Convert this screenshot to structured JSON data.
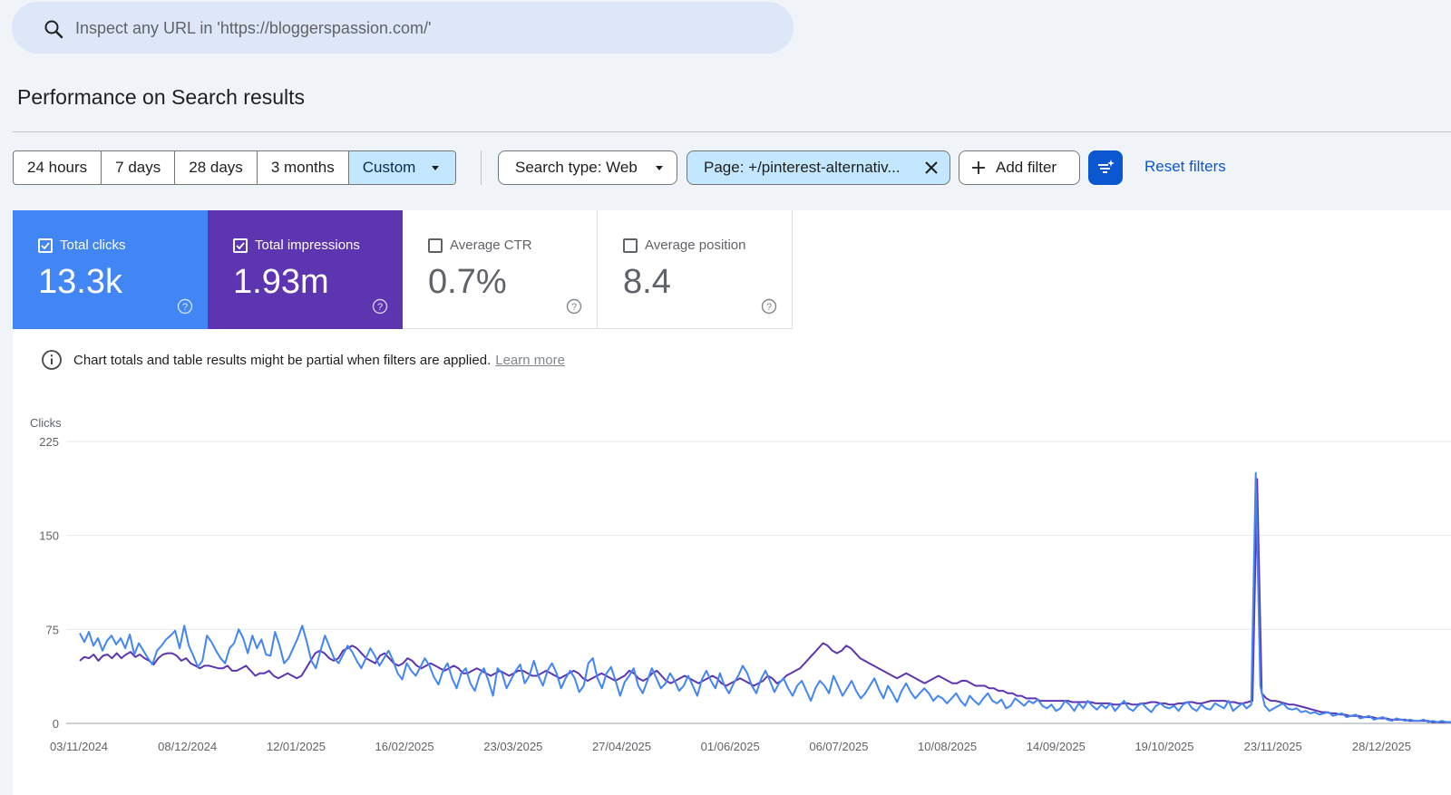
{
  "search": {
    "placeholder": "Inspect any URL in 'https://bloggerspassion.com/'"
  },
  "page_title": "Performance on Search results",
  "date_range": {
    "options": [
      "24 hours",
      "7 days",
      "28 days",
      "3 months",
      "Custom"
    ],
    "active": "Custom"
  },
  "filters": {
    "search_type": "Search type: Web",
    "page": "Page: +/pinterest-alternativ...",
    "add_filter": "Add filter",
    "reset": "Reset filters"
  },
  "metrics": [
    {
      "label": "Total clicks",
      "value": "13.3k",
      "checked": true,
      "color": "#4285f4"
    },
    {
      "label": "Total impressions",
      "value": "1.93m",
      "checked": true,
      "color": "#5e35b1"
    },
    {
      "label": "Average CTR",
      "value": "0.7%",
      "checked": false
    },
    {
      "label": "Average position",
      "value": "8.4",
      "checked": false
    }
  ],
  "notice": {
    "text": "Chart totals and table results might be partial when filters are applied.",
    "link": "Learn more"
  },
  "chart_data": {
    "type": "line",
    "ylabel": "Clicks",
    "ylim": [
      0,
      225
    ],
    "yticks": [
      "225",
      "150",
      "75",
      "0"
    ],
    "xticks": [
      "03/11/2024",
      "08/12/2024",
      "12/01/2025",
      "16/02/2025",
      "23/03/2025",
      "27/04/2025",
      "01/06/2025",
      "06/07/2025",
      "10/08/2025",
      "14/09/2025",
      "19/10/2025",
      "23/11/2025",
      "28/12/2025"
    ],
    "grid": true,
    "series": [
      {
        "color": "#4285f4",
        "values": [
          72,
          65,
          73,
          62,
          68,
          58,
          66,
          70,
          63,
          68,
          60,
          71,
          55,
          64,
          58,
          52,
          47,
          58,
          62,
          67,
          70,
          74,
          60,
          78,
          62,
          54,
          45,
          50,
          70,
          65,
          58,
          52,
          48,
          60,
          64,
          75,
          68,
          56,
          70,
          60,
          67,
          55,
          54,
          73,
          62,
          48,
          52,
          60,
          68,
          78,
          65,
          50,
          44,
          58,
          70,
          61,
          52,
          48,
          55,
          62,
          57,
          50,
          44,
          52,
          60,
          54,
          46,
          52,
          58,
          50,
          40,
          35,
          48,
          42,
          38,
          45,
          52,
          46,
          37,
          31,
          42,
          48,
          36,
          28,
          40,
          44,
          32,
          26,
          38,
          44,
          34,
          22,
          44,
          40,
          28,
          35,
          42,
          47,
          32,
          38,
          50,
          38,
          30,
          42,
          48,
          40,
          28,
          36,
          42,
          36,
          25,
          30,
          48,
          52,
          36,
          28,
          40,
          45,
          34,
          22,
          33,
          38,
          44,
          30,
          24,
          34,
          44,
          36,
          28,
          32,
          40,
          34,
          26,
          30,
          38,
          30,
          22,
          35,
          42,
          34,
          28,
          40,
          30,
          24,
          32,
          38,
          46,
          40,
          30,
          24,
          35,
          42,
          34,
          25,
          32,
          36,
          28,
          22,
          30,
          34,
          26,
          18,
          28,
          34,
          30,
          24,
          38,
          30,
          22,
          28,
          34,
          26,
          20,
          24,
          30,
          36,
          27,
          20,
          30,
          24,
          17,
          26,
          32,
          25,
          20,
          24,
          28,
          24,
          18,
          22,
          20,
          16,
          20,
          24,
          18,
          14,
          22,
          18,
          15,
          20,
          24,
          18,
          16,
          19,
          12,
          14,
          20,
          17,
          14,
          18,
          16,
          19,
          14,
          12,
          15,
          10,
          12,
          18,
          15,
          10,
          16,
          12,
          18,
          14,
          11,
          15,
          12,
          16,
          10,
          14,
          18,
          12,
          10,
          14,
          16,
          12,
          9,
          14,
          16,
          13,
          12,
          14,
          10,
          15,
          17,
          12,
          10,
          15,
          12,
          11,
          16,
          14,
          12,
          18,
          10,
          13,
          16,
          12,
          15,
          200,
          30,
          14,
          10,
          12,
          14,
          16,
          12,
          11,
          12,
          9,
          10,
          8,
          9,
          7,
          8,
          9,
          6,
          7,
          8,
          5,
          6,
          7,
          4,
          5,
          6,
          3,
          4,
          5,
          3,
          2,
          4,
          3,
          2,
          3,
          2,
          2,
          3,
          1,
          2,
          1,
          2,
          1,
          1
        ]
      },
      {
        "color": "#5e35b1",
        "values": [
          50,
          53,
          52,
          55,
          50,
          54,
          55,
          52,
          56,
          52,
          55,
          57,
          53,
          55,
          52,
          50,
          47,
          52,
          55,
          56,
          56,
          54,
          50,
          52,
          48,
          46,
          44,
          46,
          46,
          45,
          44,
          44,
          46,
          42,
          42,
          44,
          46,
          42,
          38,
          40,
          40,
          42,
          38,
          36,
          38,
          40,
          38,
          36,
          38,
          44,
          50,
          56,
          58,
          56,
          52,
          50,
          52,
          58,
          60,
          62,
          60,
          56,
          52,
          50,
          48,
          54,
          56,
          52,
          48,
          46,
          48,
          52,
          50,
          46,
          44,
          46,
          48,
          46,
          44,
          42,
          44,
          46,
          44,
          40,
          40,
          42,
          44,
          42,
          40,
          38,
          40,
          42,
          40,
          38,
          40,
          42,
          42,
          40,
          38,
          38,
          40,
          42,
          40,
          38,
          36,
          38,
          40,
          42,
          40,
          36,
          34,
          36,
          38,
          40,
          38,
          36,
          34,
          36,
          38,
          42,
          40,
          36,
          34,
          36,
          40,
          42,
          38,
          34,
          32,
          34,
          36,
          38,
          36,
          34,
          32,
          34,
          36,
          38,
          36,
          32,
          30,
          32,
          34,
          36,
          34,
          32,
          30,
          32,
          34,
          38,
          36,
          32,
          34,
          38,
          40,
          42,
          44,
          48,
          52,
          56,
          60,
          64,
          62,
          58,
          56,
          58,
          62,
          60,
          56,
          52,
          50,
          48,
          46,
          44,
          42,
          40,
          38,
          36,
          38,
          40,
          38,
          36,
          34,
          32,
          34,
          36,
          38,
          36,
          34,
          32,
          32,
          34,
          34,
          32,
          30,
          30,
          30,
          28,
          28,
          26,
          26,
          24,
          24,
          22,
          22,
          20,
          20,
          20,
          18,
          18,
          18,
          18,
          18,
          18,
          18,
          17,
          17,
          17,
          17,
          17,
          16,
          16,
          16,
          16,
          15,
          15,
          16,
          16,
          15,
          15,
          16,
          16,
          17,
          17,
          16,
          16,
          15,
          15,
          16,
          16,
          17,
          17,
          16,
          16,
          17,
          18,
          18,
          18,
          18,
          17,
          17,
          16,
          16,
          17,
          18,
          195,
          24,
          20,
          18,
          18,
          17,
          16,
          15,
          15,
          14,
          13,
          12,
          11,
          10,
          9,
          9,
          8,
          8,
          7,
          7,
          6,
          6,
          6,
          5,
          5,
          5,
          4,
          4,
          4,
          3,
          3,
          3,
          3,
          2,
          2,
          2,
          2,
          2,
          1,
          1,
          1,
          1,
          1
        ]
      }
    ]
  }
}
